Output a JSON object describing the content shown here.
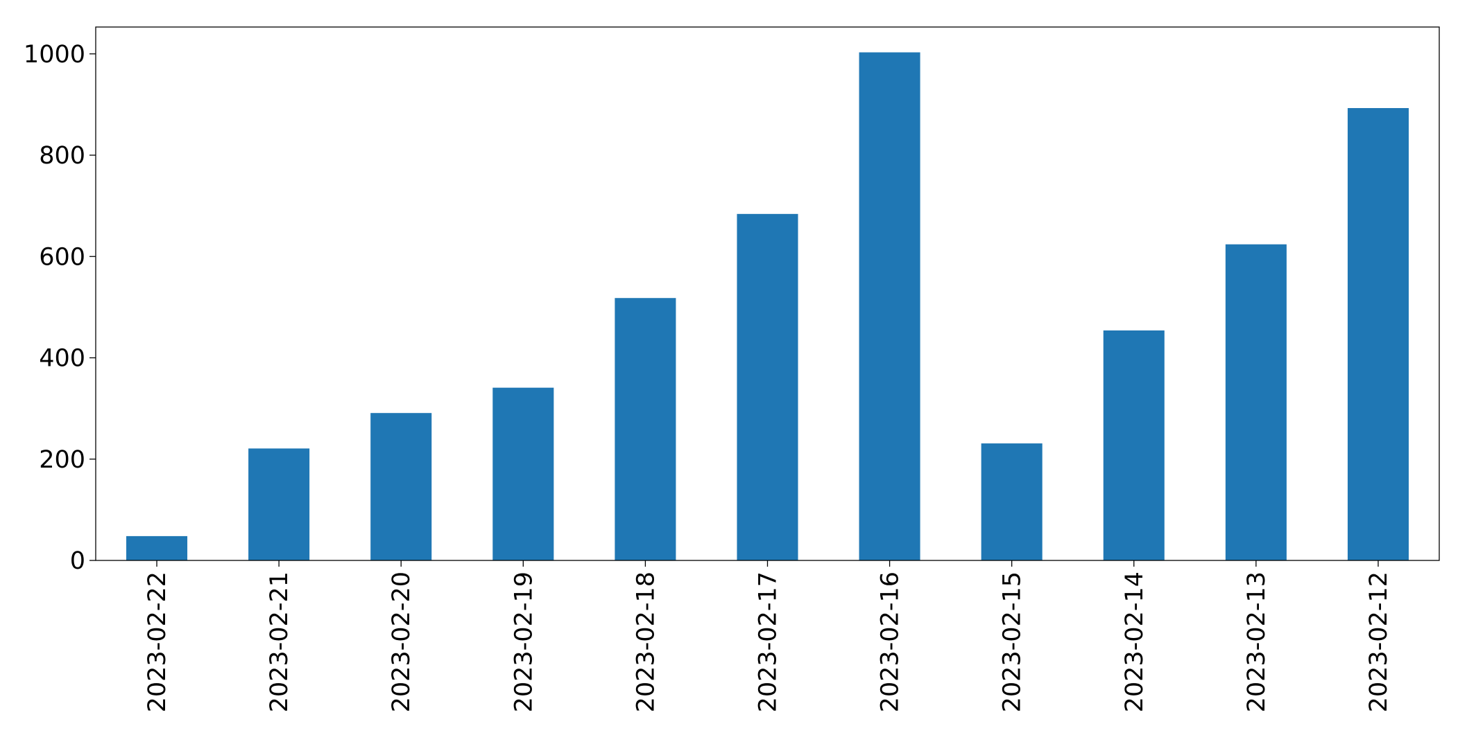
{
  "chart_data": {
    "type": "bar",
    "categories": [
      "2023-02-22",
      "2023-02-21",
      "2023-02-20",
      "2023-02-19",
      "2023-02-18",
      "2023-02-17",
      "2023-02-16",
      "2023-02-15",
      "2023-02-14",
      "2023-02-13",
      "2023-02-12"
    ],
    "values": [
      48,
      221,
      291,
      341,
      518,
      684,
      1003,
      231,
      454,
      624,
      893
    ],
    "color": "#1f77b4",
    "ylim": [
      0,
      1053
    ],
    "yticks": [
      0,
      200,
      400,
      600,
      800,
      1000
    ],
    "grid": false
  }
}
